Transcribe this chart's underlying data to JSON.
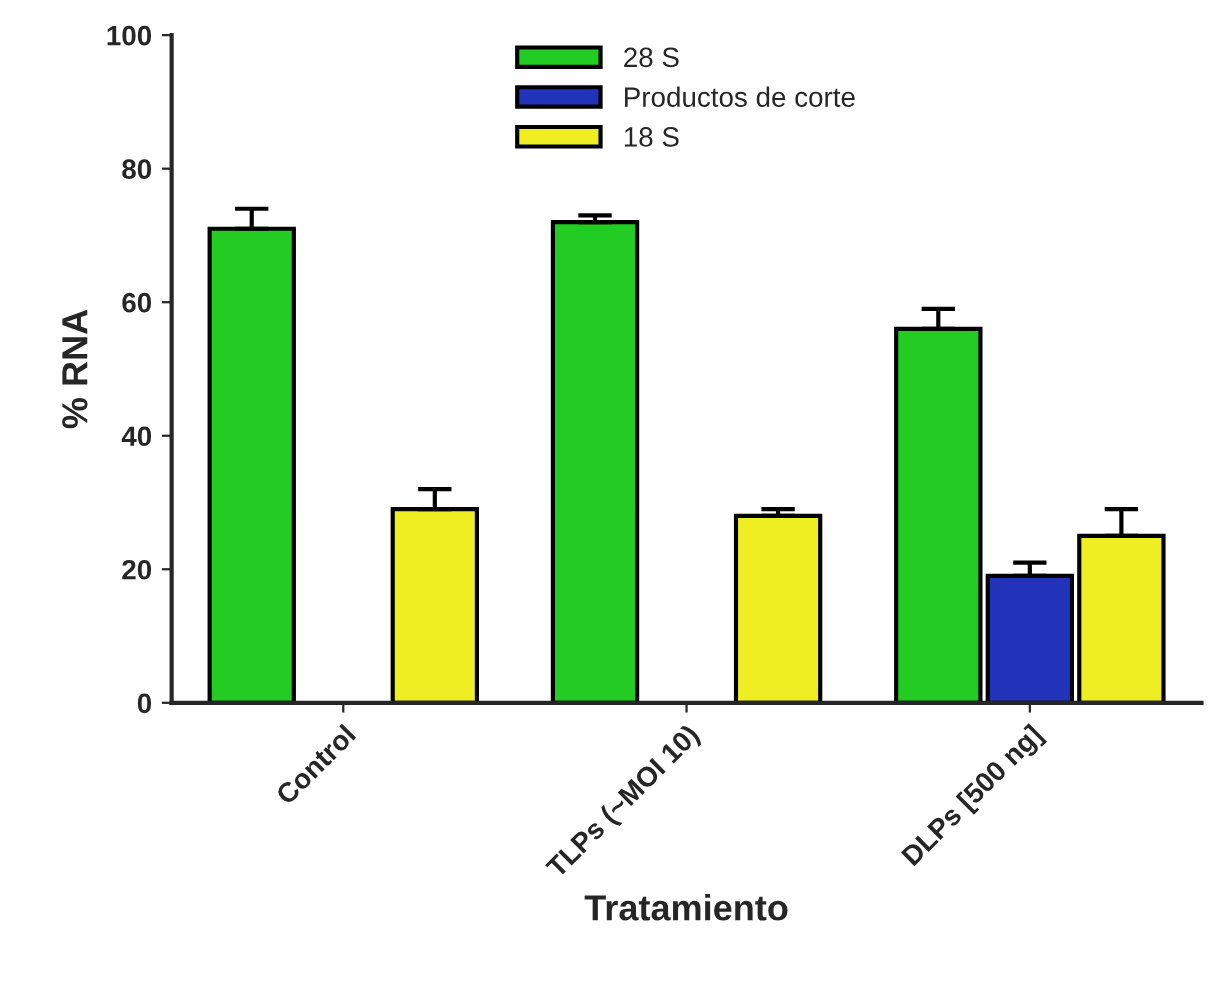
{
  "chart_data": {
    "type": "bar",
    "xlabel": "Tratamiento",
    "ylabel": "% RNA",
    "categories": [
      "Control",
      "TLPs (~MOI 10)",
      "DLPs [500 ng]"
    ],
    "series": [
      {
        "name": "28 S",
        "color": "#22cc22",
        "values": [
          71,
          72,
          56
        ],
        "errors": [
          [
            71,
            74
          ],
          [
            72,
            73
          ],
          [
            56,
            59
          ]
        ]
      },
      {
        "name": "Productos de corte",
        "color": "#2233bb",
        "values": [
          null,
          null,
          19
        ],
        "errors": [
          null,
          null,
          [
            19,
            21
          ]
        ]
      },
      {
        "name": "18 S",
        "color": "#eeee22",
        "values": [
          29,
          28,
          25
        ],
        "errors": [
          [
            29,
            32
          ],
          [
            28,
            29
          ],
          [
            25,
            29
          ]
        ]
      }
    ],
    "ylim": [
      0,
      100
    ],
    "yticks": [
      0,
      20,
      40,
      60,
      80,
      100
    ],
    "grid": false,
    "legend": "top"
  }
}
